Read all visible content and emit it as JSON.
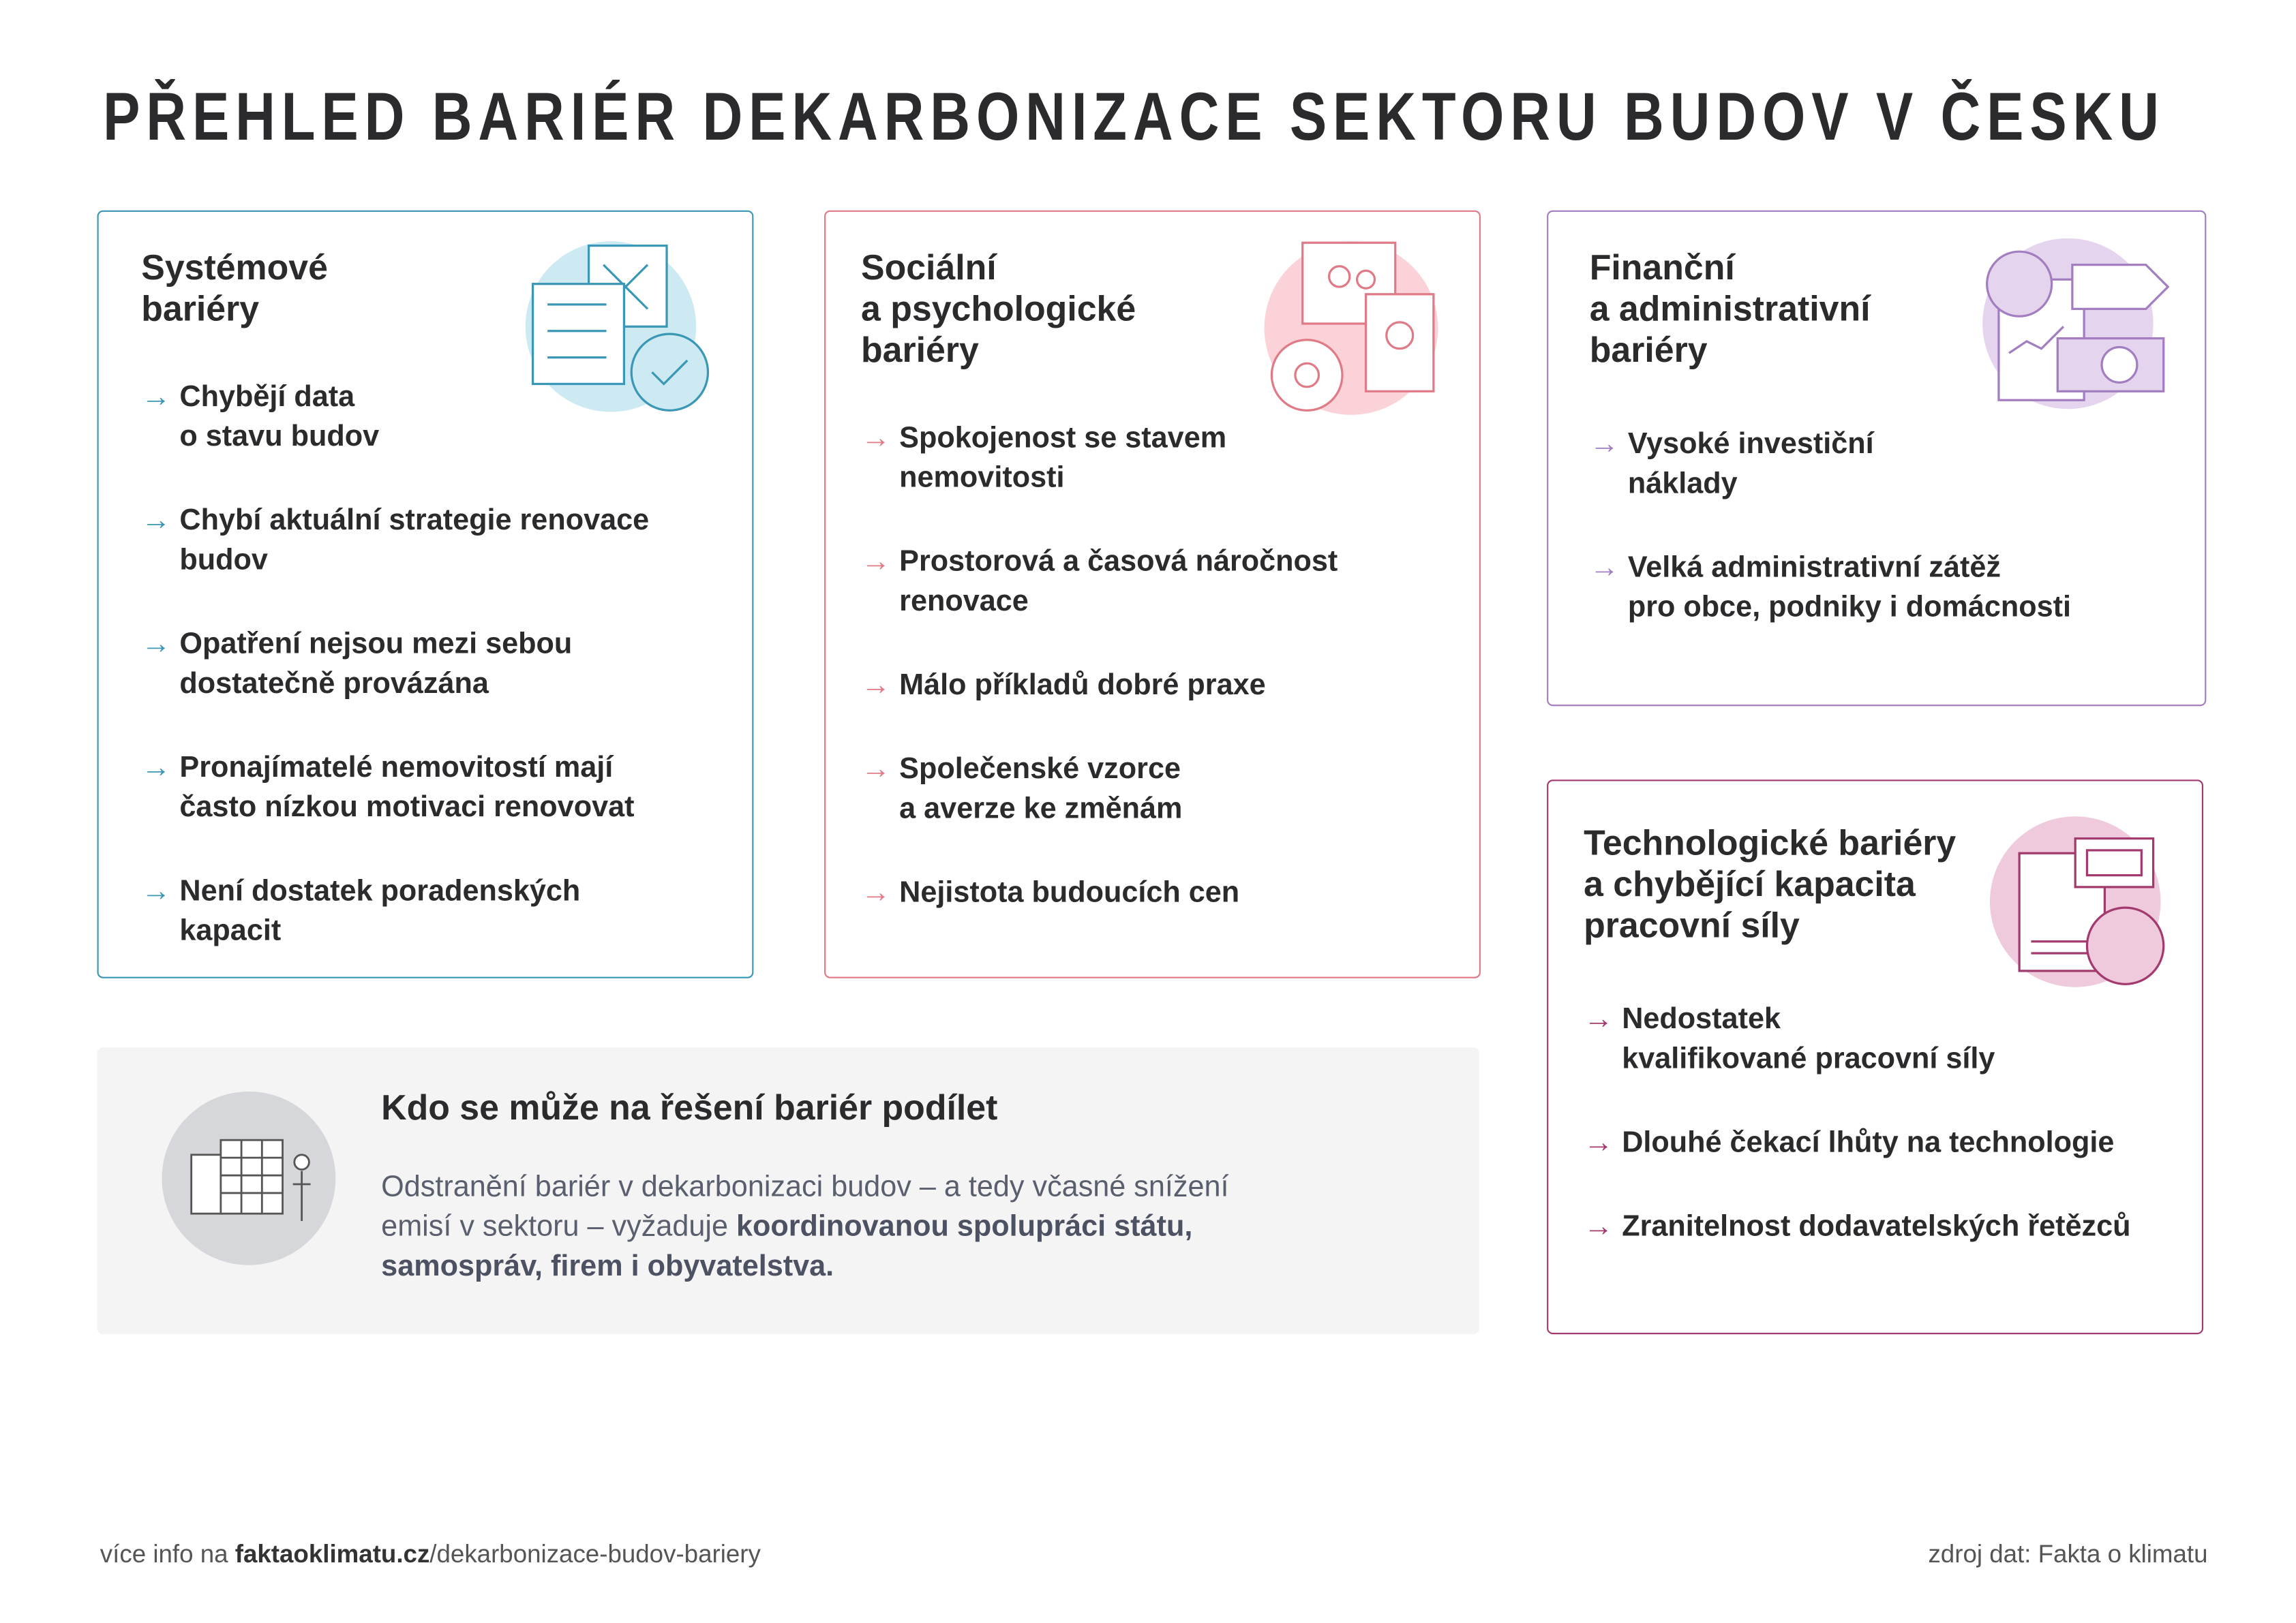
{
  "header": {
    "title": "PŘEHLED BARIÉR DEKARBONIZACE SEKTORU BUDOV V ČESKU"
  },
  "cards": [
    {
      "title": [
        "Systémové",
        "bariéry"
      ],
      "items": [
        [
          "Chybějí data",
          "o stavu budov"
        ],
        [
          "Chybí aktuální strategie renovace",
          "budov"
        ],
        [
          "Opatření nejsou mezi sebou",
          "dostatečně provázána"
        ],
        [
          "Pronajímatelé nemovitostí mají",
          "často nízkou motivaci renovovat"
        ],
        [
          "Není dostatek poradenských",
          "kapacit"
        ]
      ]
    },
    {
      "title": [
        "Sociální",
        "a psychologické",
        "bariéry"
      ],
      "items": [
        [
          "Spokojenost se stavem",
          "nemovitosti"
        ],
        [
          "Prostorová a časová náročnost",
          "renovace"
        ],
        [
          "Málo příkladů dobré praxe"
        ],
        [
          "Společenské vzorce",
          "a averze ke změnám"
        ],
        [
          "Nejistota budoucích cen"
        ]
      ]
    },
    {
      "title": [
        "Finanční",
        "a administrativní",
        "bariéry"
      ],
      "items": [
        [
          "Vysoké investiční",
          "náklady"
        ],
        [
          "Velká administrativní zátěž",
          "pro obce, podniky i domácnosti"
        ]
      ]
    },
    {
      "title": [
        "Technologické bariéry",
        "a chybějící kapacita",
        "pracovní síly"
      ],
      "items": [
        [
          "Nedostatek",
          "kvalifikované pracovní síly"
        ],
        [
          "Dlouhé čekací lhůty na technologie"
        ],
        [
          "Zranitelnost dodavatelských řetězců"
        ]
      ]
    }
  ],
  "info": {
    "title": "Kdo se může na řešení bariér podílet",
    "text": [
      "Odstranění bariér v dekarbonizaci budov – a tedy včasné snížení",
      "emisí v sektoru – vyžaduje "
    ],
    "bold": [
      "koordinovanou spolupráci státu,",
      "samospráv, firem i obyvatelstva."
    ]
  },
  "footer": {
    "prefix": "více info na ",
    "link_bold": "faktaoklimatu.cz",
    "link_rest": "/dekarbonizace-budov-bariery",
    "source": "zdroj dat: Fakta o klimatu"
  }
}
